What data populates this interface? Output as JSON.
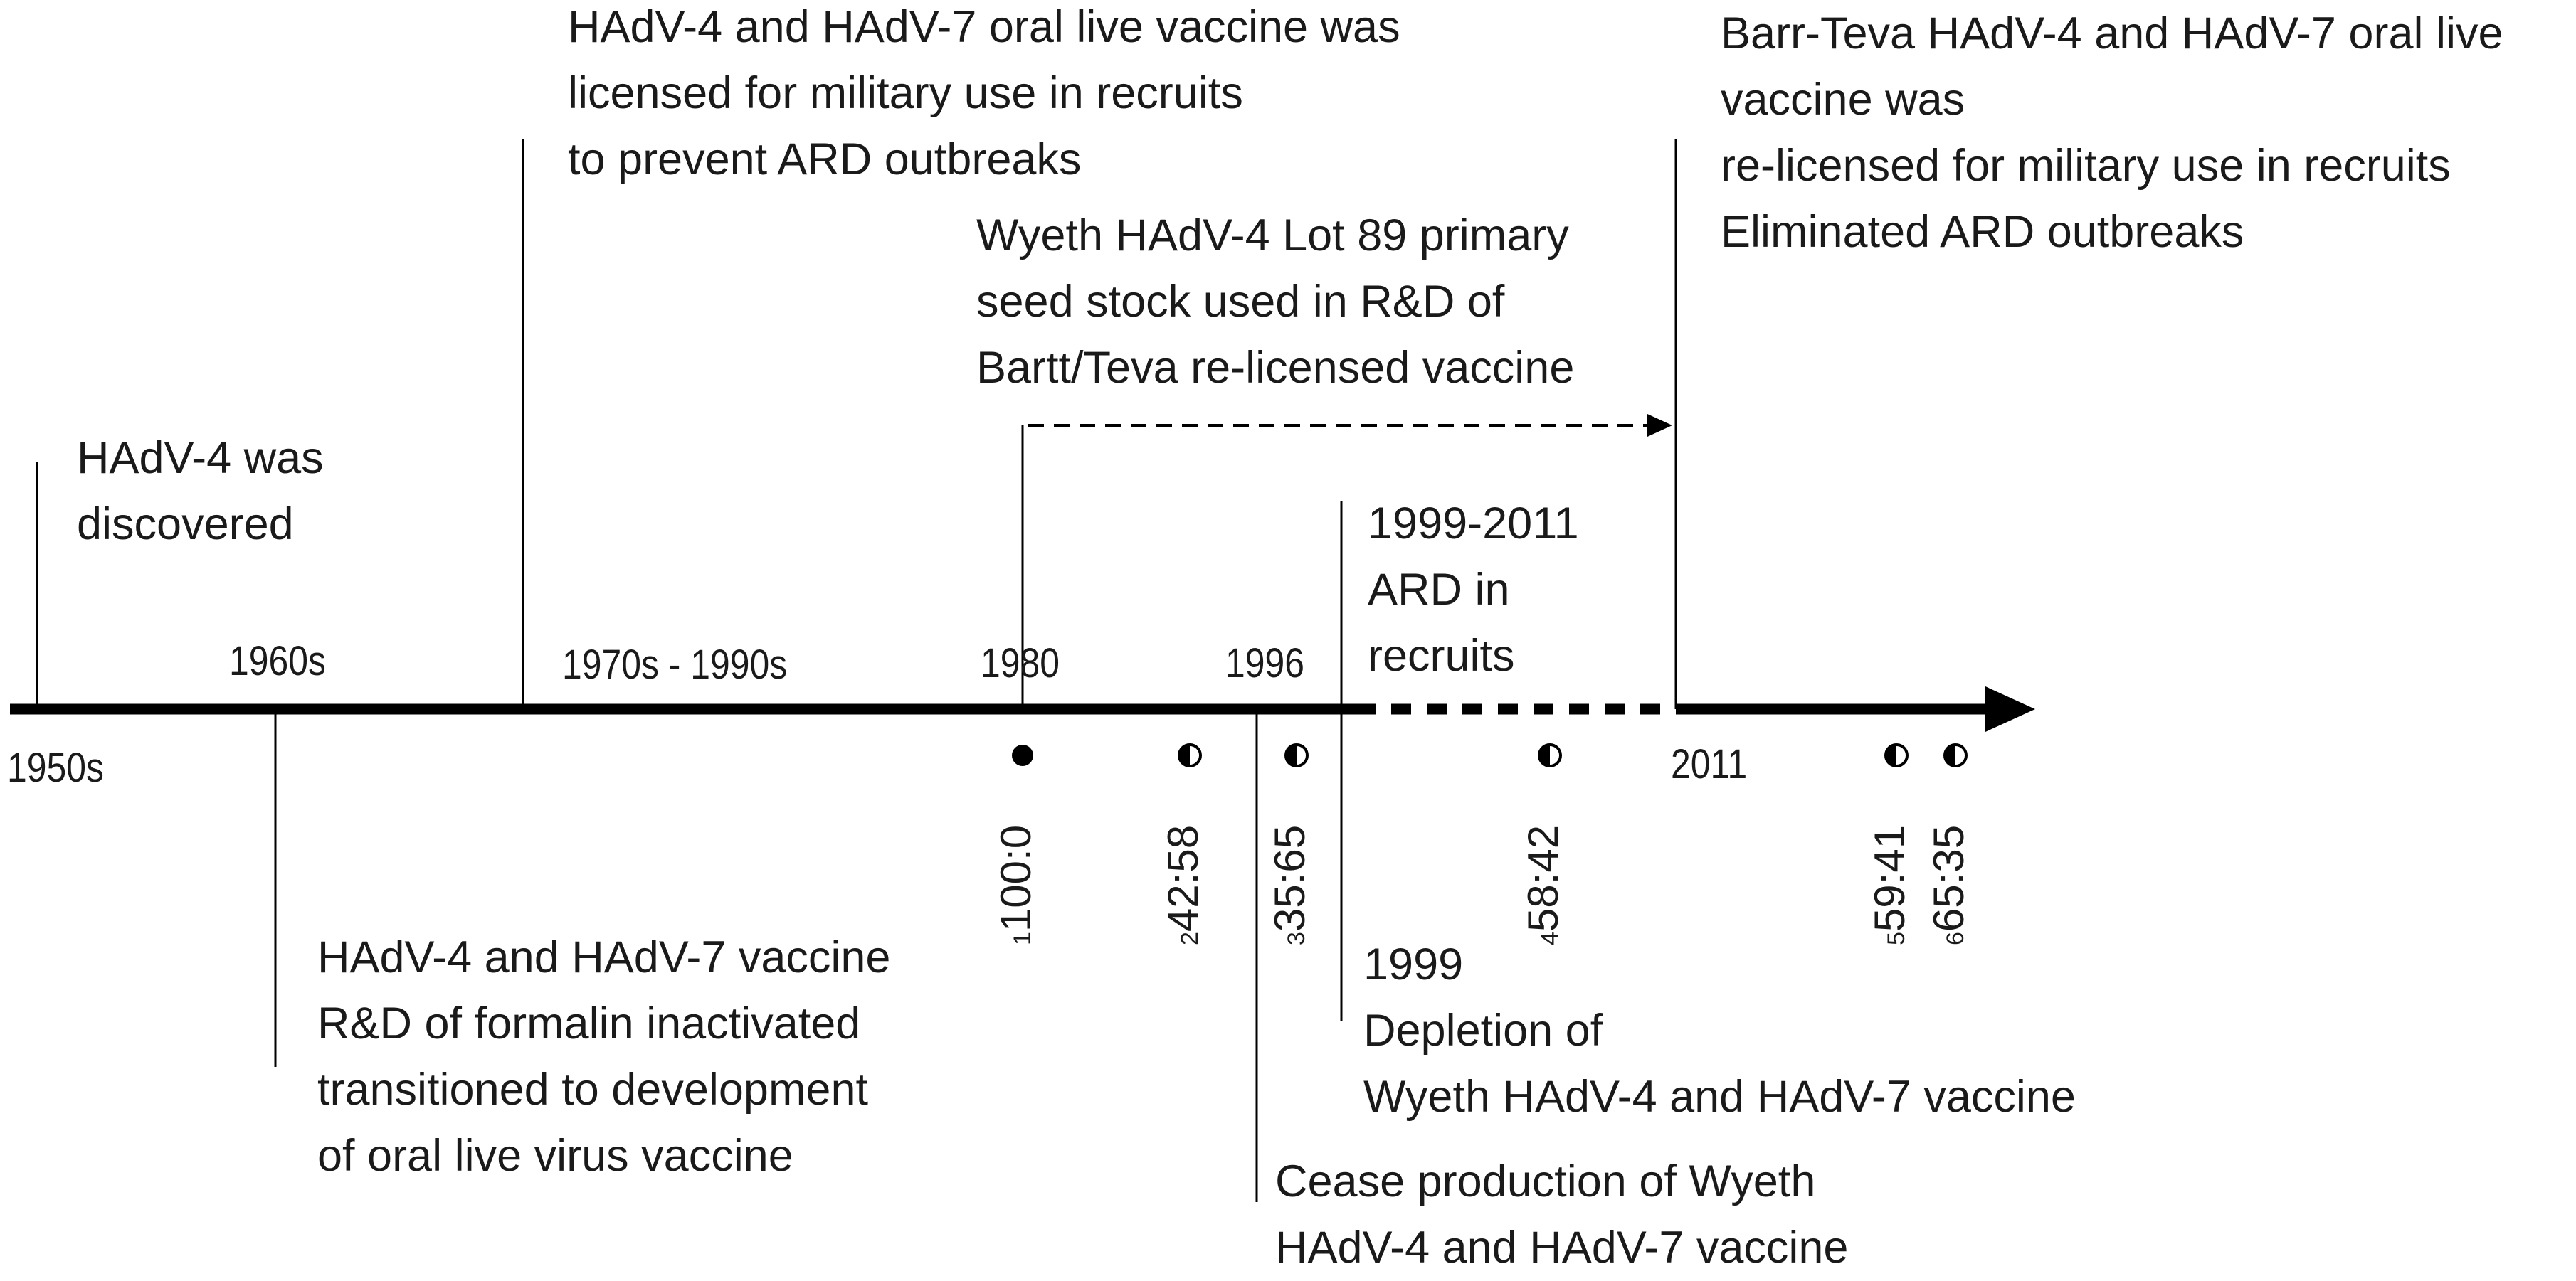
{
  "diagram": {
    "title_hidden": "",
    "era_labels": {
      "y1950s": "1950s",
      "y1960s": "1960s",
      "y1970s_1990s": "1970s - 1990s",
      "y1980": "1980",
      "y1996": "1996",
      "y2011": "2011"
    },
    "events": {
      "discovered": [
        "HAdV-4 was",
        "discovered"
      ],
      "oral_live_licensed": [
        "HAdV-4 and HAdV-7 oral live vaccine was",
        "licensed for military use in recruits",
        "to prevent ARD outbreaks"
      ],
      "wyeth_lot89": [
        "Wyeth HAdV-4 Lot 89 primary",
        "seed stock used in R&D of",
        "Bartt/Teva re-licensed vaccine"
      ],
      "barr_teva": [
        "Barr-Teva HAdV-4 and HAdV-7 oral live",
        "vaccine was",
        "re-licensed for military use in recruits",
        "Eliminated ARD outbreaks"
      ],
      "ard_1999_2011": [
        "1999-2011",
        "ARD in",
        "recruits"
      ],
      "formalin": [
        "HAdV-4 and HAdV-7 vaccine",
        "R&D of formalin inactivated",
        "transitioned to development",
        "of oral live virus vaccine"
      ],
      "depletion_1999": [
        "1999",
        "Depletion of",
        "Wyeth HAdV-4 and HAdV-7 vaccine"
      ],
      "cease_production": [
        "Cease production of Wyeth",
        "HAdV-4 and HAdV-7 vaccine"
      ]
    },
    "ratios": [
      {
        "sup": "1",
        "value": "100:0",
        "marker": "full"
      },
      {
        "sup": "2",
        "value": "42:58",
        "marker": "half"
      },
      {
        "sup": "3",
        "value": "35:65",
        "marker": "half"
      },
      {
        "sup": "4",
        "value": "58:42",
        "marker": "half"
      },
      {
        "sup": "5",
        "value": "59:41",
        "marker": "half"
      },
      {
        "sup": "6",
        "value": "65:35",
        "marker": "half"
      }
    ]
  }
}
